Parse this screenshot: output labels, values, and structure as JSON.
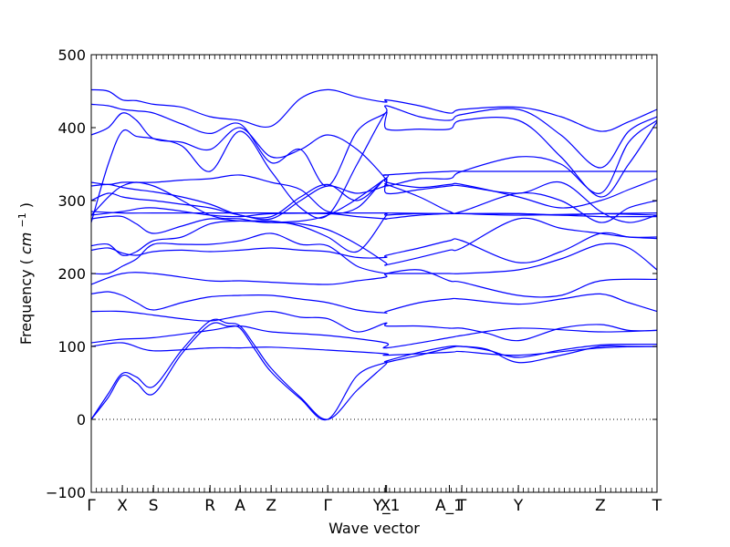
{
  "chart_data": {
    "type": "line",
    "title": "",
    "xlabel": "Wave vector",
    "ylabel": "Frequency",
    "ylabel_unit_base": "cm",
    "ylabel_unit_exp": "−1",
    "ylim": [
      -100,
      500
    ],
    "yticks": [
      -100,
      0,
      100,
      200,
      300,
      400,
      500
    ],
    "ytick_labels": [
      "−100",
      "0",
      "100",
      "200",
      "300",
      "400",
      "500"
    ],
    "zero_line": true,
    "line_color": "#0000ff",
    "high_symmetry_points": [
      {
        "label": "Γ",
        "x": 0.0
      },
      {
        "label": "X",
        "x": 0.055
      },
      {
        "label": "S",
        "x": 0.11
      },
      {
        "label": "R",
        "x": 0.21
      },
      {
        "label": "A",
        "x": 0.263
      },
      {
        "label": "Z",
        "x": 0.318
      },
      {
        "label": "Γ",
        "x": 0.418
      },
      {
        "label": "X",
        "x": 0.52
      },
      {
        "label": "Y_1",
        "x": 0.522
      },
      {
        "label": "A_1",
        "x": 0.633
      },
      {
        "label": "T",
        "x": 0.655
      },
      {
        "label": "Y",
        "x": 0.755
      },
      {
        "label": "Z",
        "x": 0.9
      },
      {
        "label": "T",
        "x": 1.0
      }
    ],
    "series": [
      {
        "x": [
          0,
          0.03,
          0.055,
          0.08,
          0.11,
          0.16,
          0.21,
          0.24,
          0.263,
          0.29,
          0.318,
          0.37,
          0.418,
          0.47,
          0.52,
          0.522,
          0.58,
          0.633,
          0.655,
          0.7,
          0.755,
          0.83,
          0.9,
          0.95,
          1.0
        ],
        "y": [
          0,
          35,
          63,
          58,
          45,
          95,
          135,
          132,
          128,
          100,
          70,
          30,
          0,
          40,
          75,
          78,
          88,
          98,
          100,
          95,
          85,
          95,
          102,
          103,
          103
        ]
      },
      {
        "x": [
          0,
          0.03,
          0.055,
          0.08,
          0.11,
          0.16,
          0.21,
          0.24,
          0.263,
          0.29,
          0.318,
          0.37,
          0.418,
          0.47,
          0.52,
          0.522,
          0.58,
          0.633,
          0.655,
          0.7,
          0.755,
          0.83,
          0.9,
          0.95,
          1.0
        ],
        "y": [
          0,
          30,
          60,
          50,
          35,
          90,
          130,
          128,
          125,
          95,
          65,
          28,
          0,
          60,
          78,
          80,
          92,
          100,
          100,
          96,
          78,
          88,
          100,
          100,
          100
        ]
      },
      {
        "x": [
          0,
          0.055,
          0.11,
          0.21,
          0.263,
          0.318,
          0.418,
          0.52,
          0.522,
          0.633,
          0.655,
          0.755,
          0.9,
          1.0
        ],
        "y": [
          100,
          105,
          94,
          98,
          98,
          99,
          95,
          90,
          88,
          92,
          93,
          88,
          98,
          100
        ]
      },
      {
        "x": [
          0,
          0.055,
          0.11,
          0.21,
          0.263,
          0.318,
          0.418,
          0.52,
          0.522,
          0.633,
          0.655,
          0.755,
          0.9,
          1.0
        ],
        "y": [
          105,
          110,
          112,
          122,
          128,
          120,
          115,
          105,
          98,
          112,
          115,
          125,
          120,
          122
        ]
      },
      {
        "x": [
          0,
          0.055,
          0.11,
          0.16,
          0.21,
          0.263,
          0.318,
          0.37,
          0.418,
          0.47,
          0.52,
          0.522,
          0.58,
          0.633,
          0.655,
          0.7,
          0.755,
          0.83,
          0.9,
          0.95,
          1.0
        ],
        "y": [
          148,
          148,
          143,
          138,
          135,
          142,
          148,
          140,
          138,
          120,
          132,
          128,
          128,
          125,
          125,
          118,
          108,
          125,
          130,
          122,
          122
        ]
      },
      {
        "x": [
          0,
          0.03,
          0.055,
          0.08,
          0.11,
          0.16,
          0.21,
          0.263,
          0.318,
          0.37,
          0.418,
          0.47,
          0.52,
          0.522,
          0.58,
          0.633,
          0.655,
          0.755,
          0.83,
          0.9,
          0.95,
          1.0
        ],
        "y": [
          172,
          175,
          170,
          160,
          150,
          160,
          168,
          170,
          170,
          165,
          160,
          150,
          146,
          148,
          160,
          165,
          165,
          158,
          165,
          172,
          160,
          148
        ]
      },
      {
        "x": [
          0,
          0.055,
          0.11,
          0.21,
          0.263,
          0.318,
          0.418,
          0.47,
          0.52,
          0.522,
          0.58,
          0.633,
          0.655,
          0.755,
          0.83,
          0.9,
          1.0
        ],
        "y": [
          185,
          200,
          200,
          190,
          190,
          188,
          185,
          190,
          195,
          200,
          205,
          190,
          188,
          170,
          170,
          190,
          192
        ]
      },
      {
        "x": [
          0,
          0.03,
          0.055,
          0.08,
          0.11,
          0.16,
          0.21,
          0.263,
          0.318,
          0.37,
          0.418,
          0.47,
          0.52,
          0.522,
          0.58,
          0.633,
          0.655,
          0.755,
          0.83,
          0.9,
          0.95,
          1.0
        ],
        "y": [
          200,
          200,
          210,
          220,
          240,
          240,
          240,
          245,
          255,
          240,
          238,
          210,
          200,
          200,
          200,
          200,
          200,
          205,
          220,
          240,
          235,
          205
        ]
      },
      {
        "x": [
          0,
          0.03,
          0.055,
          0.08,
          0.11,
          0.16,
          0.21,
          0.263,
          0.318,
          0.37,
          0.418,
          0.47,
          0.52,
          0.522,
          0.58,
          0.633,
          0.655,
          0.755,
          0.83,
          0.9,
          0.95,
          1.0
        ],
        "y": [
          232,
          235,
          228,
          225,
          230,
          232,
          230,
          232,
          235,
          232,
          230,
          222,
          222,
          225,
          235,
          245,
          245,
          215,
          230,
          255,
          250,
          248
        ]
      },
      {
        "x": [
          0,
          0.03,
          0.055,
          0.08,
          0.11,
          0.16,
          0.21,
          0.263,
          0.318,
          0.37,
          0.418,
          0.47,
          0.52,
          0.522,
          0.58,
          0.633,
          0.655,
          0.755,
          0.83,
          0.9,
          0.95,
          1.0
        ],
        "y": [
          238,
          240,
          225,
          230,
          245,
          250,
          268,
          272,
          270,
          268,
          260,
          240,
          215,
          212,
          222,
          232,
          235,
          275,
          262,
          255,
          250,
          250
        ]
      },
      {
        "x": [
          0,
          0.03,
          0.055,
          0.08,
          0.11,
          0.16,
          0.21,
          0.263,
          0.318,
          0.37,
          0.418,
          0.47,
          0.52,
          0.522,
          0.58,
          0.633,
          0.655,
          0.755,
          0.83,
          0.9,
          0.95,
          1.0
        ],
        "y": [
          275,
          278,
          278,
          268,
          255,
          265,
          275,
          272,
          272,
          265,
          250,
          230,
          278,
          280,
          282,
          282,
          282,
          282,
          280,
          278,
          278,
          278
        ]
      },
      {
        "x": [
          0,
          0.055,
          0.11,
          0.21,
          0.263,
          0.318,
          0.418,
          0.47,
          0.52,
          0.522,
          0.58,
          0.633,
          0.655,
          0.755,
          0.83,
          0.9,
          1.0
        ],
        "y": [
          280,
          285,
          290,
          280,
          278,
          282,
          282,
          278,
          275,
          275,
          280,
          282,
          282,
          282,
          280,
          282,
          280
        ]
      },
      {
        "x": [
          0,
          0.055,
          0.11,
          0.21,
          0.263,
          0.318,
          0.418,
          0.52,
          0.522,
          0.633,
          0.655,
          0.755,
          0.9,
          1.0
        ],
        "y": [
          285,
          283,
          283,
          283,
          283,
          283,
          283,
          283,
          283,
          282,
          282,
          280,
          282,
          283
        ]
      },
      {
        "x": [
          0,
          0.03,
          0.055,
          0.08,
          0.11,
          0.16,
          0.21,
          0.263,
          0.318,
          0.37,
          0.418,
          0.47,
          0.52,
          0.522,
          0.58,
          0.633,
          0.655,
          0.755,
          0.83,
          0.9,
          0.95,
          1.0
        ],
        "y": [
          300,
          310,
          305,
          302,
          300,
          295,
          290,
          280,
          275,
          300,
          320,
          310,
          320,
          322,
          305,
          285,
          285,
          310,
          300,
          270,
          290,
          300
        ]
      },
      {
        "x": [
          0,
          0.03,
          0.055,
          0.08,
          0.11,
          0.16,
          0.21,
          0.263,
          0.318,
          0.37,
          0.418,
          0.47,
          0.52,
          0.522,
          0.58,
          0.633,
          0.655,
          0.755,
          0.83,
          0.9,
          0.95,
          1.0
        ],
        "y": [
          320,
          322,
          318,
          315,
          312,
          305,
          295,
          280,
          278,
          305,
          322,
          300,
          330,
          325,
          318,
          322,
          322,
          305,
          290,
          300,
          315,
          330
        ]
      },
      {
        "x": [
          0,
          0.03,
          0.055,
          0.08,
          0.11,
          0.16,
          0.21,
          0.263,
          0.318,
          0.37,
          0.418,
          0.47,
          0.52,
          0.522,
          0.58,
          0.633,
          0.655,
          0.755,
          0.83,
          0.9,
          0.95,
          1.0
        ],
        "y": [
          325,
          322,
          325,
          325,
          325,
          328,
          330,
          335,
          325,
          315,
          285,
          290,
          330,
          310,
          315,
          320,
          320,
          310,
          325,
          285,
          270,
          280
        ]
      },
      {
        "x": [
          0,
          0.055,
          0.11,
          0.21,
          0.263,
          0.318,
          0.418,
          0.52,
          0.522,
          0.633,
          0.655,
          0.755,
          0.9,
          1.0
        ],
        "y": [
          280,
          320,
          320,
          280,
          275,
          270,
          280,
          330,
          335,
          340,
          340,
          340,
          340,
          340
        ]
      },
      {
        "x": [
          0,
          0.03,
          0.055,
          0.08,
          0.11,
          0.16,
          0.21,
          0.263,
          0.318,
          0.37,
          0.418,
          0.47,
          0.52,
          0.522,
          0.58,
          0.633,
          0.655,
          0.755,
          0.83,
          0.9,
          0.95,
          1.0
        ],
        "y": [
          270,
          350,
          395,
          388,
          385,
          375,
          340,
          395,
          340,
          290,
          280,
          350,
          420,
          398,
          398,
          398,
          410,
          410,
          360,
          305,
          350,
          408
        ]
      },
      {
        "x": [
          0,
          0.03,
          0.055,
          0.08,
          0.11,
          0.16,
          0.21,
          0.263,
          0.318,
          0.37,
          0.418,
          0.47,
          0.52,
          0.522,
          0.58,
          0.633,
          0.655,
          0.755,
          0.83,
          0.9,
          0.95,
          1.0
        ],
        "y": [
          390,
          400,
          420,
          410,
          385,
          380,
          370,
          400,
          360,
          370,
          390,
          370,
          330,
          320,
          330,
          330,
          340,
          360,
          350,
          310,
          380,
          410
        ]
      },
      {
        "x": [
          0,
          0.03,
          0.055,
          0.08,
          0.11,
          0.16,
          0.21,
          0.263,
          0.318,
          0.37,
          0.418,
          0.47,
          0.52,
          0.522,
          0.58,
          0.633,
          0.655,
          0.755,
          0.83,
          0.9,
          0.95,
          1.0
        ],
        "y": [
          432,
          430,
          425,
          423,
          420,
          405,
          392,
          405,
          352,
          370,
          320,
          395,
          420,
          430,
          415,
          410,
          418,
          425,
          390,
          345,
          395,
          415
        ]
      },
      {
        "x": [
          0,
          0.03,
          0.055,
          0.08,
          0.11,
          0.16,
          0.21,
          0.263,
          0.318,
          0.37,
          0.418,
          0.47,
          0.52,
          0.522,
          0.58,
          0.633,
          0.655,
          0.755,
          0.83,
          0.9,
          0.95,
          1.0
        ],
        "y": [
          452,
          450,
          438,
          437,
          432,
          428,
          415,
          410,
          402,
          440,
          452,
          442,
          435,
          438,
          430,
          420,
          425,
          428,
          415,
          395,
          408,
          425
        ]
      }
    ]
  }
}
